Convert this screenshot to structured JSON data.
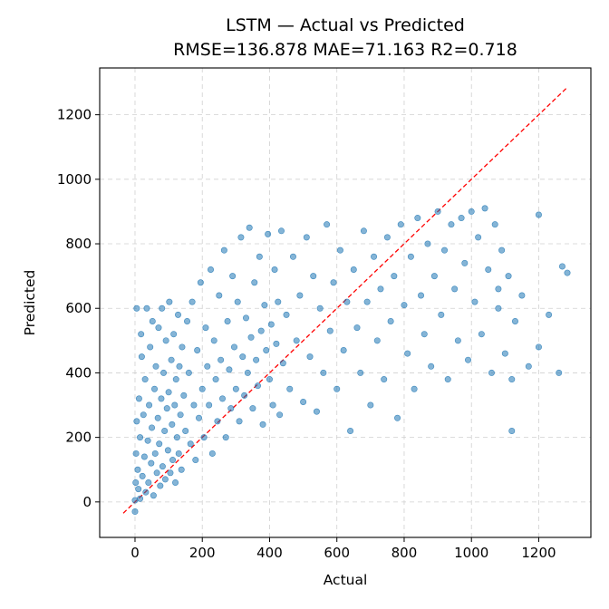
{
  "chart_data": {
    "type": "scatter",
    "title": "LSTM — Actual vs Predicted",
    "subtitle": "RMSE=136.878 MAE=71.163 R2=0.718",
    "xlabel": "Actual",
    "ylabel": "Predicted",
    "xlim": [
      -105,
      1355
    ],
    "ylim": [
      -110,
      1345
    ],
    "xticks": [
      0,
      200,
      400,
      600,
      800,
      1000,
      1200
    ],
    "yticks": [
      0,
      200,
      400,
      600,
      800,
      1000,
      1200
    ],
    "grid": true,
    "reference_line": {
      "style": "red dashed",
      "from": [
        -35,
        -35
      ],
      "to": [
        1285,
        1285
      ]
    },
    "series": [
      {
        "marker_color": "#1f77b4",
        "points": [
          [
            0,
            5
          ],
          [
            0,
            -30
          ],
          [
            2,
            60
          ],
          [
            3,
            150
          ],
          [
            5,
            250
          ],
          [
            5,
            600
          ],
          [
            8,
            100
          ],
          [
            10,
            40
          ],
          [
            12,
            320
          ],
          [
            15,
            10
          ],
          [
            15,
            200
          ],
          [
            18,
            520
          ],
          [
            20,
            450
          ],
          [
            22,
            80
          ],
          [
            25,
            270
          ],
          [
            28,
            140
          ],
          [
            30,
            380
          ],
          [
            32,
            30
          ],
          [
            35,
            600
          ],
          [
            38,
            190
          ],
          [
            40,
            60
          ],
          [
            42,
            300
          ],
          [
            45,
            480
          ],
          [
            48,
            120
          ],
          [
            50,
            230
          ],
          [
            52,
            560
          ],
          [
            55,
            20
          ],
          [
            58,
            350
          ],
          [
            60,
            150
          ],
          [
            62,
            420
          ],
          [
            65,
            90
          ],
          [
            68,
            260
          ],
          [
            70,
            540
          ],
          [
            72,
            180
          ],
          [
            75,
            50
          ],
          [
            78,
            320
          ],
          [
            80,
            600
          ],
          [
            82,
            110
          ],
          [
            85,
            400
          ],
          [
            88,
            220
          ],
          [
            90,
            70
          ],
          [
            92,
            500
          ],
          [
            95,
            290
          ],
          [
            98,
            160
          ],
          [
            100,
            340
          ],
          [
            102,
            620
          ],
          [
            105,
            90
          ],
          [
            108,
            440
          ],
          [
            110,
            240
          ],
          [
            112,
            130
          ],
          [
            115,
            520
          ],
          [
            118,
            300
          ],
          [
            120,
            60
          ],
          [
            122,
            380
          ],
          [
            125,
            200
          ],
          [
            128,
            580
          ],
          [
            130,
            150
          ],
          [
            132,
            420
          ],
          [
            135,
            270
          ],
          [
            138,
            100
          ],
          [
            140,
            480
          ],
          [
            145,
            330
          ],
          [
            150,
            220
          ],
          [
            155,
            560
          ],
          [
            160,
            400
          ],
          [
            165,
            180
          ],
          [
            170,
            620
          ],
          [
            175,
            300
          ],
          [
            180,
            130
          ],
          [
            185,
            470
          ],
          [
            190,
            260
          ],
          [
            195,
            680
          ],
          [
            200,
            350
          ],
          [
            205,
            200
          ],
          [
            210,
            540
          ],
          [
            215,
            420
          ],
          [
            220,
            300
          ],
          [
            225,
            720
          ],
          [
            230,
            150
          ],
          [
            235,
            500
          ],
          [
            240,
            380
          ],
          [
            245,
            250
          ],
          [
            250,
            640
          ],
          [
            255,
            440
          ],
          [
            260,
            320
          ],
          [
            265,
            780
          ],
          [
            270,
            200
          ],
          [
            275,
            560
          ],
          [
            280,
            410
          ],
          [
            285,
            290
          ],
          [
            290,
            700
          ],
          [
            295,
            480
          ],
          [
            300,
            350
          ],
          [
            305,
            620
          ],
          [
            310,
            250
          ],
          [
            315,
            820
          ],
          [
            320,
            450
          ],
          [
            325,
            330
          ],
          [
            330,
            570
          ],
          [
            335,
            400
          ],
          [
            340,
            850
          ],
          [
            345,
            510
          ],
          [
            350,
            290
          ],
          [
            355,
            680
          ],
          [
            360,
            440
          ],
          [
            365,
            360
          ],
          [
            370,
            760
          ],
          [
            375,
            530
          ],
          [
            380,
            240
          ],
          [
            385,
            610
          ],
          [
            390,
            470
          ],
          [
            395,
            830
          ],
          [
            400,
            380
          ],
          [
            405,
            550
          ],
          [
            410,
            300
          ],
          [
            415,
            720
          ],
          [
            420,
            490
          ],
          [
            425,
            620
          ],
          [
            430,
            270
          ],
          [
            435,
            840
          ],
          [
            440,
            430
          ],
          [
            450,
            580
          ],
          [
            460,
            350
          ],
          [
            470,
            760
          ],
          [
            480,
            500
          ],
          [
            490,
            640
          ],
          [
            500,
            310
          ],
          [
            510,
            820
          ],
          [
            520,
            450
          ],
          [
            530,
            700
          ],
          [
            540,
            280
          ],
          [
            550,
            600
          ],
          [
            560,
            400
          ],
          [
            570,
            860
          ],
          [
            580,
            530
          ],
          [
            590,
            680
          ],
          [
            600,
            350
          ],
          [
            610,
            780
          ],
          [
            620,
            470
          ],
          [
            630,
            620
          ],
          [
            640,
            220
          ],
          [
            650,
            720
          ],
          [
            660,
            540
          ],
          [
            670,
            400
          ],
          [
            680,
            840
          ],
          [
            690,
            620
          ],
          [
            700,
            300
          ],
          [
            710,
            760
          ],
          [
            720,
            500
          ],
          [
            730,
            660
          ],
          [
            740,
            380
          ],
          [
            750,
            820
          ],
          [
            760,
            560
          ],
          [
            770,
            700
          ],
          [
            780,
            260
          ],
          [
            790,
            860
          ],
          [
            800,
            610
          ],
          [
            810,
            460
          ],
          [
            820,
            760
          ],
          [
            830,
            350
          ],
          [
            840,
            880
          ],
          [
            850,
            640
          ],
          [
            860,
            520
          ],
          [
            870,
            800
          ],
          [
            880,
            420
          ],
          [
            890,
            700
          ],
          [
            900,
            900
          ],
          [
            910,
            580
          ],
          [
            920,
            780
          ],
          [
            930,
            380
          ],
          [
            940,
            860
          ],
          [
            950,
            660
          ],
          [
            960,
            500
          ],
          [
            970,
            880
          ],
          [
            980,
            740
          ],
          [
            990,
            440
          ],
          [
            1000,
            900
          ],
          [
            1010,
            620
          ],
          [
            1020,
            820
          ],
          [
            1030,
            520
          ],
          [
            1040,
            910
          ],
          [
            1050,
            720
          ],
          [
            1060,
            400
          ],
          [
            1070,
            860
          ],
          [
            1080,
            600
          ],
          [
            1090,
            780
          ],
          [
            1100,
            460
          ],
          [
            1110,
            700
          ],
          [
            1120,
            380
          ],
          [
            1130,
            560
          ],
          [
            1150,
            640
          ],
          [
            1170,
            420
          ],
          [
            1200,
            480
          ],
          [
            1200,
            890
          ],
          [
            1230,
            580
          ],
          [
            1260,
            400
          ],
          [
            1270,
            730
          ],
          [
            1285,
            710
          ],
          [
            1120,
            220
          ],
          [
            1080,
            660
          ]
        ]
      }
    ]
  }
}
